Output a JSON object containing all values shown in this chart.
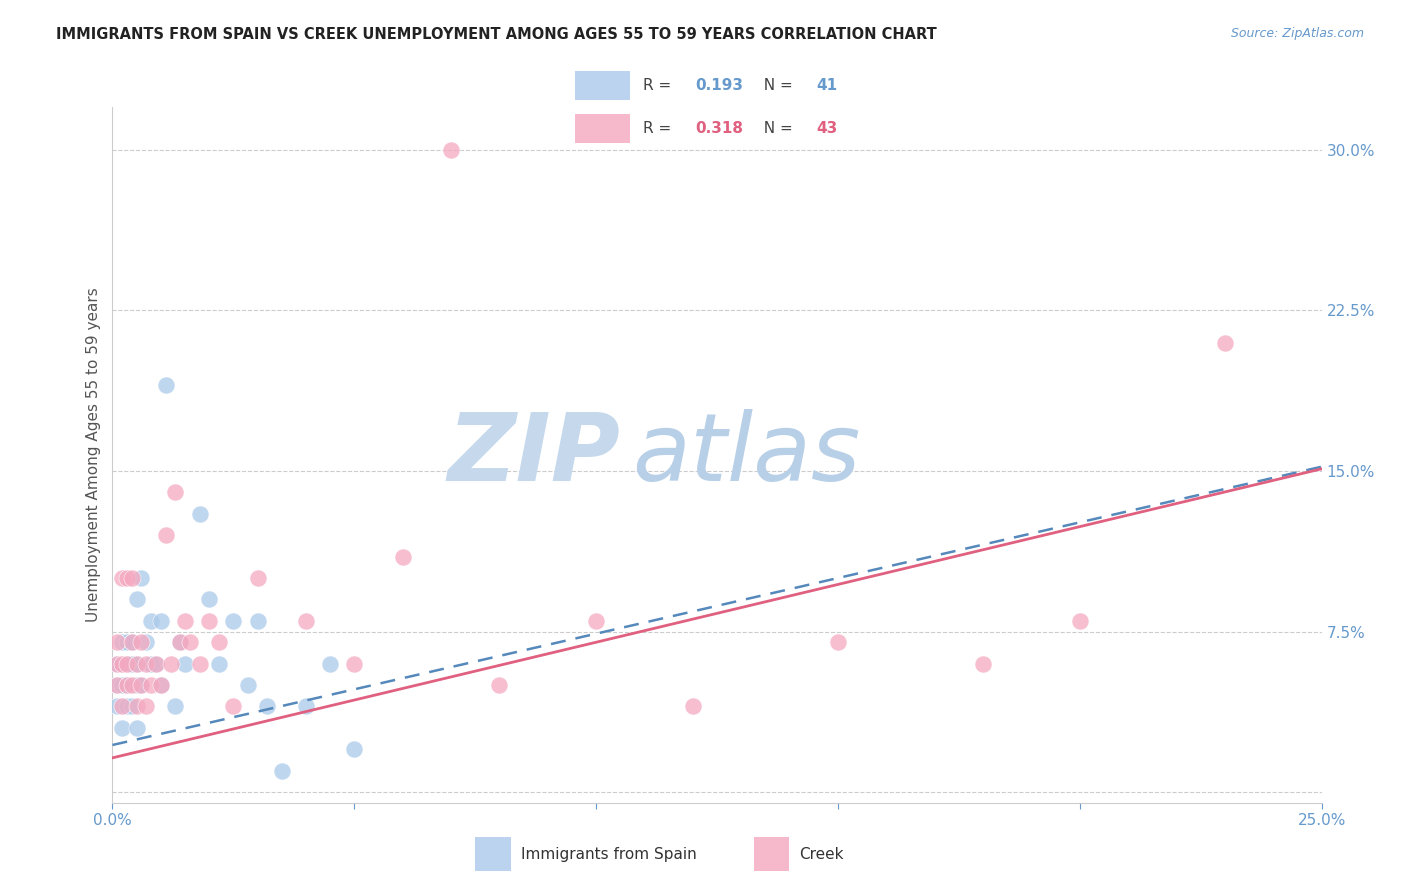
{
  "title": "IMMIGRANTS FROM SPAIN VS CREEK UNEMPLOYMENT AMONG AGES 55 TO 59 YEARS CORRELATION CHART",
  "source": "Source: ZipAtlas.com",
  "ylabel": "Unemployment Among Ages 55 to 59 years",
  "xlim": [
    0.0,
    0.25
  ],
  "ylim": [
    -0.005,
    0.32
  ],
  "yticks_right": [
    0.0,
    0.075,
    0.15,
    0.225,
    0.3
  ],
  "blue_color": "#aac9ea",
  "pink_color": "#f4a8c0",
  "blue_line_color": "#5588bb",
  "pink_line_color": "#e06080",
  "axis_color": "#6699cc",
  "grid_color": "#cccccc",
  "watermark_zip_color": "#c5d8ec",
  "watermark_atlas_color": "#b8cfe8",
  "blue_x": [
    0.001,
    0.001,
    0.001,
    0.002,
    0.002,
    0.002,
    0.002,
    0.003,
    0.003,
    0.003,
    0.003,
    0.004,
    0.004,
    0.004,
    0.005,
    0.005,
    0.005,
    0.005,
    0.006,
    0.006,
    0.007,
    0.008,
    0.008,
    0.009,
    0.01,
    0.01,
    0.011,
    0.013,
    0.014,
    0.015,
    0.018,
    0.02,
    0.022,
    0.025,
    0.028,
    0.03,
    0.032,
    0.035,
    0.04,
    0.045,
    0.05
  ],
  "blue_y": [
    0.04,
    0.05,
    0.06,
    0.03,
    0.05,
    0.06,
    0.07,
    0.04,
    0.05,
    0.06,
    0.07,
    0.04,
    0.06,
    0.07,
    0.03,
    0.05,
    0.06,
    0.09,
    0.05,
    0.1,
    0.07,
    0.06,
    0.08,
    0.06,
    0.05,
    0.08,
    0.19,
    0.04,
    0.07,
    0.06,
    0.13,
    0.09,
    0.06,
    0.08,
    0.05,
    0.08,
    0.04,
    0.01,
    0.04,
    0.06,
    0.02
  ],
  "pink_x": [
    0.001,
    0.001,
    0.001,
    0.002,
    0.002,
    0.002,
    0.003,
    0.003,
    0.003,
    0.004,
    0.004,
    0.004,
    0.005,
    0.005,
    0.006,
    0.006,
    0.007,
    0.007,
    0.008,
    0.009,
    0.01,
    0.011,
    0.012,
    0.013,
    0.014,
    0.015,
    0.016,
    0.018,
    0.02,
    0.022,
    0.025,
    0.03,
    0.04,
    0.05,
    0.06,
    0.07,
    0.08,
    0.1,
    0.12,
    0.15,
    0.18,
    0.2,
    0.23
  ],
  "pink_y": [
    0.05,
    0.06,
    0.07,
    0.04,
    0.06,
    0.1,
    0.05,
    0.06,
    0.1,
    0.05,
    0.07,
    0.1,
    0.04,
    0.06,
    0.05,
    0.07,
    0.04,
    0.06,
    0.05,
    0.06,
    0.05,
    0.12,
    0.06,
    0.14,
    0.07,
    0.08,
    0.07,
    0.06,
    0.08,
    0.07,
    0.04,
    0.1,
    0.08,
    0.06,
    0.11,
    0.3,
    0.05,
    0.08,
    0.04,
    0.07,
    0.06,
    0.08,
    0.21
  ],
  "R_blue": 0.193,
  "N_blue": 41,
  "R_pink": 0.318,
  "N_pink": 43,
  "blue_line_intercept": 0.022,
  "blue_line_slope": 0.52,
  "pink_line_intercept": 0.016,
  "pink_line_slope": 0.54
}
